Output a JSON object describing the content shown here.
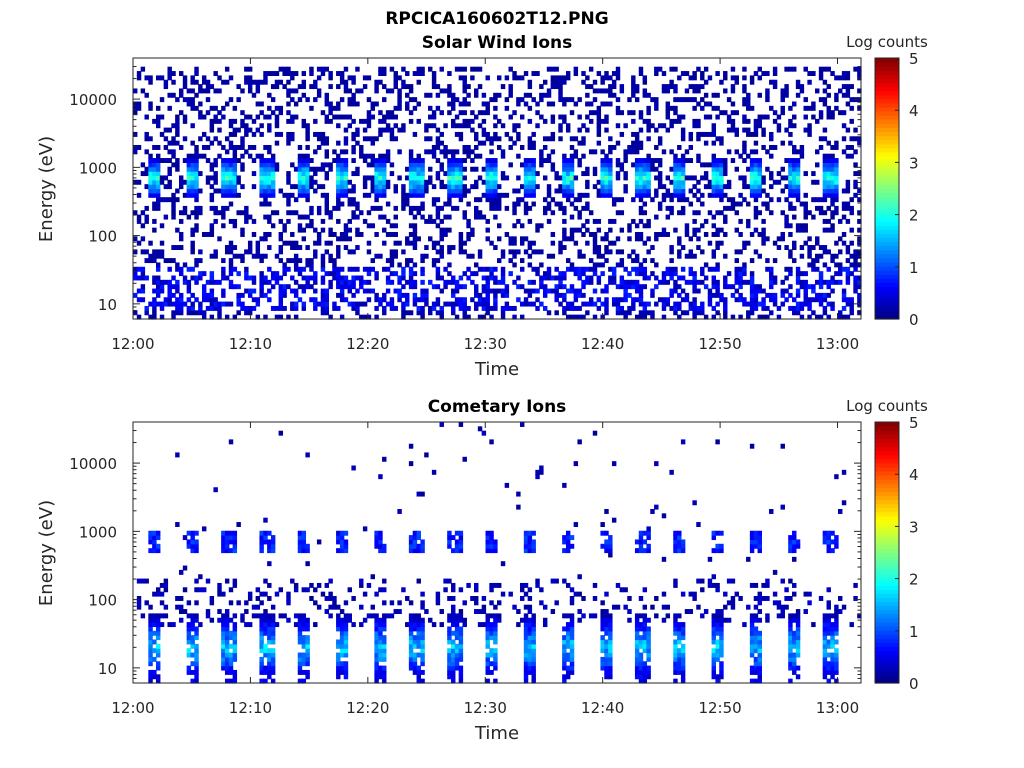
{
  "figure_title": "RPCICA160602T12.PNG",
  "chart_data": [
    {
      "type": "heatmap",
      "title": "Solar Wind Ions",
      "xlabel": "Time",
      "ylabel": "Energy (eV)",
      "x_ticks": [
        "12:00",
        "12:10",
        "12:20",
        "12:30",
        "12:40",
        "12:50",
        "13:00"
      ],
      "y_ticks": [
        "10",
        "100",
        "1000",
        "10000"
      ],
      "y_scale": "log",
      "ylim": [
        6,
        40000
      ],
      "xlim_minutes": [
        0,
        62
      ],
      "colorbar": {
        "label": "Log counts",
        "ticks": [
          "0",
          "1",
          "2",
          "3",
          "4",
          "5"
        ],
        "range": [
          0,
          5
        ],
        "colormap": "jet"
      },
      "features": {
        "sweep_period_min": 3.2,
        "peak_energy_eV": 700,
        "peak_log_counts": 2.4,
        "low_energy_band_eV": [
          8,
          35
        ],
        "background_log_counts": 0.1
      }
    },
    {
      "type": "heatmap",
      "title": "Cometary Ions",
      "xlabel": "Time",
      "ylabel": "Energy (eV)",
      "x_ticks": [
        "12:00",
        "12:10",
        "12:20",
        "12:30",
        "12:40",
        "12:50",
        "13:00"
      ],
      "y_ticks": [
        "10",
        "100",
        "1000",
        "10000"
      ],
      "y_scale": "log",
      "ylim": [
        6,
        40000
      ],
      "xlim_minutes": [
        0,
        62
      ],
      "colorbar": {
        "label": "Log counts",
        "ticks": [
          "0",
          "1",
          "2",
          "3",
          "4",
          "5"
        ],
        "range": [
          0,
          5
        ],
        "colormap": "jet"
      },
      "features": {
        "sweep_period_min": 3.2,
        "peak_energy_eV": 20,
        "peak_log_counts": 2.0,
        "secondary_energy_eV": 700,
        "secondary_log_counts": 1.0,
        "background_log_counts": 0.05
      }
    }
  ]
}
